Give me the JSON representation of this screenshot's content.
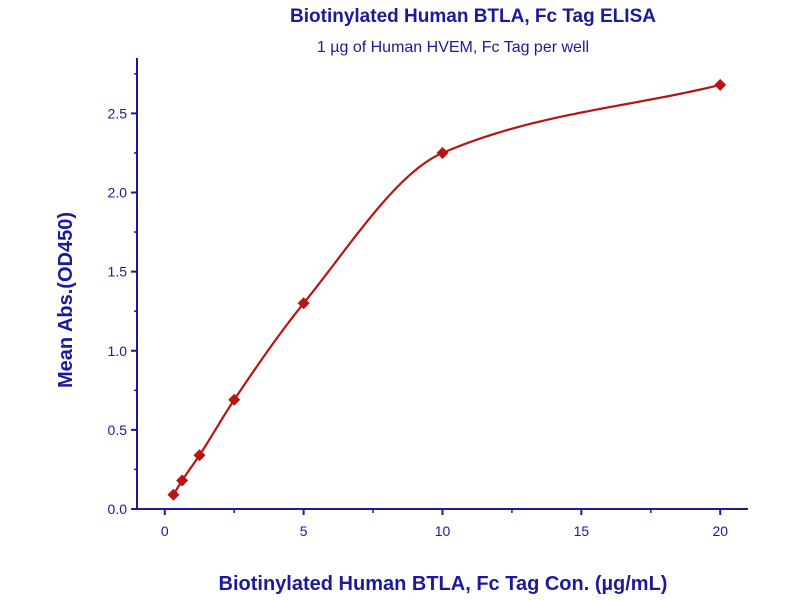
{
  "colors": {
    "text": "#1a1a9c",
    "axis": "#1a1a9c",
    "series": "#b81414"
  },
  "chart_data": {
    "type": "scatter",
    "title": "Biotinylated Human BTLA, Fc Tag ELISA",
    "subtitle": "1 µg of Human HVEM, Fc Tag per well",
    "xlabel": "Biotinylated Human BTLA, Fc Tag Con. (µg/mL)",
    "ylabel": "Mean Abs.(OD450)",
    "xlim": [
      -1,
      21
    ],
    "ylim": [
      0,
      2.85
    ],
    "x_ticks": [
      0,
      5,
      10,
      15,
      20
    ],
    "x_tick_labels": [
      "0",
      "5",
      "10",
      "15",
      "20"
    ],
    "y_ticks": [
      0,
      0.5,
      1,
      1.5,
      2,
      2.5
    ],
    "y_tick_labels": [
      "0.0",
      "0.5",
      "1.0",
      "1.5",
      "2.0",
      "2.5"
    ],
    "grid": false,
    "series": [
      {
        "marker": "diamond",
        "fit_line": true,
        "points": [
          {
            "x": 0.3125,
            "y": 0.09
          },
          {
            "x": 0.625,
            "y": 0.18
          },
          {
            "x": 1.25,
            "y": 0.34
          },
          {
            "x": 2.5,
            "y": 0.69
          },
          {
            "x": 5,
            "y": 1.3
          },
          {
            "x": 10,
            "y": 2.25
          },
          {
            "x": 20,
            "y": 2.68
          }
        ]
      }
    ]
  }
}
